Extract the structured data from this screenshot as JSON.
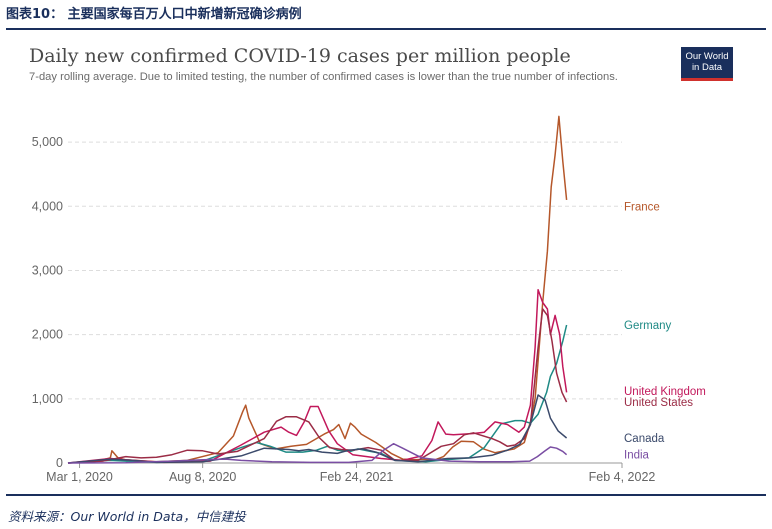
{
  "header": {
    "title": "图表10：  主要国家每百万人口中新增新冠确诊病例"
  },
  "source": {
    "text": "资料来源：Our World in Data，中信建投"
  },
  "logo": {
    "line1": "Our World",
    "line2": "in Data"
  },
  "colors": {
    "France": "#b5572a",
    "Germany": "#1f8a85",
    "United Kingdom": "#c2185b",
    "United States": "#9b2c46",
    "Canada": "#3b4a6b",
    "India": "#7a4ea3",
    "grid": "#dddddd",
    "axis_text": "#666666",
    "header": "#1a2f5c"
  },
  "chart_data": {
    "type": "line",
    "title": "Daily new confirmed COVID-19 cases per million people",
    "subtitle": "7-day rolling average. Due to limited testing, the number of confirmed cases is lower than the true number of infections.",
    "x_ticks": [
      "Mar 1, 2020",
      "Aug 8, 2020",
      "Feb 24, 2021",
      "Feb 4, 2022"
    ],
    "x_tick_days": [
      0,
      160,
      360,
      705
    ],
    "xlim_days": [
      -15,
      705
    ],
    "ylim": [
      0,
      5500
    ],
    "y_ticks": [
      0,
      1000,
      2000,
      3000,
      4000,
      5000
    ],
    "y_tick_labels": [
      "0",
      "1,000",
      "2,000",
      "3,000",
      "4,000",
      "5,000"
    ],
    "grid": "horizontal-dashed",
    "series": [
      {
        "name": "France",
        "label_y": 4000,
        "points": [
          [
            -15,
            0
          ],
          [
            20,
            20
          ],
          [
            40,
            80
          ],
          [
            42,
            190
          ],
          [
            50,
            80
          ],
          [
            60,
            50
          ],
          [
            100,
            20
          ],
          [
            140,
            40
          ],
          [
            180,
            160
          ],
          [
            200,
            420
          ],
          [
            212,
            800
          ],
          [
            216,
            900
          ],
          [
            220,
            700
          ],
          [
            235,
            300
          ],
          [
            255,
            220
          ],
          [
            275,
            260
          ],
          [
            295,
            290
          ],
          [
            318,
            450
          ],
          [
            330,
            520
          ],
          [
            337,
            600
          ],
          [
            345,
            380
          ],
          [
            352,
            620
          ],
          [
            358,
            560
          ],
          [
            366,
            450
          ],
          [
            385,
            320
          ],
          [
            405,
            150
          ],
          [
            420,
            60
          ],
          [
            435,
            50
          ],
          [
            455,
            60
          ],
          [
            462,
            50
          ],
          [
            473,
            100
          ],
          [
            485,
            250
          ],
          [
            496,
            340
          ],
          [
            512,
            330
          ],
          [
            525,
            220
          ],
          [
            540,
            160
          ],
          [
            565,
            220
          ],
          [
            578,
            320
          ],
          [
            586,
            640
          ],
          [
            592,
            1000
          ],
          [
            602,
            2500
          ],
          [
            608,
            3300
          ],
          [
            613,
            4300
          ],
          [
            618,
            4800
          ],
          [
            623,
            5400
          ],
          [
            628,
            4700
          ],
          [
            633,
            4100
          ]
        ]
      },
      {
        "name": "Germany",
        "label_y": 2150,
        "points": [
          [
            -15,
            0
          ],
          [
            40,
            40
          ],
          [
            60,
            30
          ],
          [
            100,
            10
          ],
          [
            160,
            30
          ],
          [
            210,
            240
          ],
          [
            230,
            320
          ],
          [
            248,
            260
          ],
          [
            268,
            170
          ],
          [
            290,
            170
          ],
          [
            308,
            200
          ],
          [
            322,
            260
          ],
          [
            335,
            200
          ],
          [
            352,
            180
          ],
          [
            362,
            220
          ],
          [
            378,
            180
          ],
          [
            392,
            150
          ],
          [
            410,
            40
          ],
          [
            450,
            20
          ],
          [
            476,
            50
          ],
          [
            506,
            80
          ],
          [
            526,
            240
          ],
          [
            548,
            610
          ],
          [
            566,
            660
          ],
          [
            575,
            660
          ],
          [
            586,
            620
          ],
          [
            596,
            760
          ],
          [
            607,
            1100
          ],
          [
            612,
            1350
          ],
          [
            620,
            1550
          ],
          [
            628,
            1900
          ],
          [
            633,
            2150
          ]
        ]
      },
      {
        "name": "United Kingdom",
        "label_y": 1120,
        "points": [
          [
            -15,
            0
          ],
          [
            40,
            70
          ],
          [
            60,
            50
          ],
          [
            110,
            10
          ],
          [
            170,
            30
          ],
          [
            210,
            280
          ],
          [
            240,
            480
          ],
          [
            262,
            560
          ],
          [
            272,
            480
          ],
          [
            282,
            430
          ],
          [
            292,
            640
          ],
          [
            300,
            880
          ],
          [
            310,
            880
          ],
          [
            324,
            500
          ],
          [
            335,
            300
          ],
          [
            355,
            130
          ],
          [
            392,
            70
          ],
          [
            420,
            40
          ],
          [
            445,
            110
          ],
          [
            458,
            350
          ],
          [
            466,
            640
          ],
          [
            476,
            450
          ],
          [
            486,
            440
          ],
          [
            512,
            460
          ],
          [
            526,
            480
          ],
          [
            540,
            640
          ],
          [
            556,
            600
          ],
          [
            571,
            480
          ],
          [
            578,
            560
          ],
          [
            586,
            900
          ],
          [
            592,
            1800
          ],
          [
            596,
            2700
          ],
          [
            602,
            2500
          ],
          [
            608,
            2400
          ],
          [
            612,
            2000
          ],
          [
            618,
            2300
          ],
          [
            624,
            2000
          ],
          [
            628,
            1500
          ],
          [
            633,
            1100
          ]
        ]
      },
      {
        "name": "United States",
        "label_y": 950,
        "points": [
          [
            -15,
            0
          ],
          [
            30,
            30
          ],
          [
            60,
            100
          ],
          [
            80,
            80
          ],
          [
            100,
            90
          ],
          [
            120,
            130
          ],
          [
            140,
            200
          ],
          [
            160,
            190
          ],
          [
            180,
            140
          ],
          [
            205,
            180
          ],
          [
            240,
            380
          ],
          [
            256,
            650
          ],
          [
            268,
            720
          ],
          [
            282,
            720
          ],
          [
            298,
            640
          ],
          [
            312,
            390
          ],
          [
            325,
            240
          ],
          [
            340,
            210
          ],
          [
            355,
            200
          ],
          [
            375,
            240
          ],
          [
            392,
            200
          ],
          [
            410,
            40
          ],
          [
            440,
            40
          ],
          [
            470,
            260
          ],
          [
            486,
            300
          ],
          [
            500,
            440
          ],
          [
            512,
            470
          ],
          [
            520,
            440
          ],
          [
            536,
            380
          ],
          [
            546,
            330
          ],
          [
            556,
            260
          ],
          [
            566,
            280
          ],
          [
            578,
            380
          ],
          [
            586,
            600
          ],
          [
            596,
            1800
          ],
          [
            602,
            2400
          ],
          [
            608,
            2300
          ],
          [
            614,
            1900
          ],
          [
            620,
            1400
          ],
          [
            627,
            1100
          ],
          [
            633,
            950
          ]
        ]
      },
      {
        "name": "Canada",
        "label_y": 390,
        "points": [
          [
            -15,
            0
          ],
          [
            40,
            60
          ],
          [
            70,
            40
          ],
          [
            100,
            10
          ],
          [
            160,
            20
          ],
          [
            210,
            110
          ],
          [
            240,
            230
          ],
          [
            255,
            220
          ],
          [
            272,
            210
          ],
          [
            285,
            190
          ],
          [
            298,
            210
          ],
          [
            315,
            170
          ],
          [
            335,
            150
          ],
          [
            350,
            200
          ],
          [
            368,
            220
          ],
          [
            385,
            170
          ],
          [
            410,
            40
          ],
          [
            440,
            20
          ],
          [
            478,
            70
          ],
          [
            508,
            80
          ],
          [
            536,
            120
          ],
          [
            556,
            200
          ],
          [
            572,
            290
          ],
          [
            586,
            600
          ],
          [
            596,
            1060
          ],
          [
            605,
            980
          ],
          [
            612,
            700
          ],
          [
            622,
            500
          ],
          [
            633,
            390
          ]
        ]
      },
      {
        "name": "India",
        "label_y": 130,
        "points": [
          [
            -15,
            0
          ],
          [
            60,
            5
          ],
          [
            120,
            30
          ],
          [
            160,
            50
          ],
          [
            190,
            60
          ],
          [
            210,
            40
          ],
          [
            250,
            20
          ],
          [
            300,
            10
          ],
          [
            350,
            10
          ],
          [
            380,
            40
          ],
          [
            395,
            200
          ],
          [
            408,
            300
          ],
          [
            420,
            230
          ],
          [
            445,
            80
          ],
          [
            480,
            30
          ],
          [
            520,
            20
          ],
          [
            560,
            20
          ],
          [
            585,
            30
          ],
          [
            595,
            100
          ],
          [
            604,
            180
          ],
          [
            612,
            250
          ],
          [
            620,
            230
          ],
          [
            628,
            180
          ],
          [
            633,
            130
          ]
        ]
      }
    ]
  }
}
